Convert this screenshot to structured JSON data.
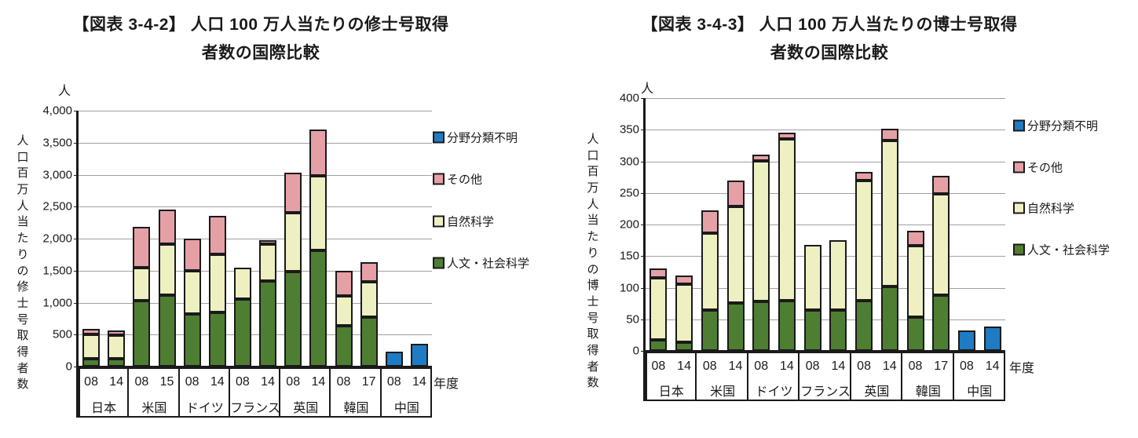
{
  "page": {
    "background": "#ffffff"
  },
  "colors": {
    "humanities_social": "#4e7e32",
    "natural_science": "#eef0c2",
    "other": "#e5a0a6",
    "unknown_field": "#1e7bc4",
    "gridline": "#a0a0a0",
    "axis": "#1a1a1a"
  },
  "chart_data": [
    {
      "type": "bar",
      "stacked": true,
      "title_lines": [
        "【図表 3-4-2】 人口 100 万人当たりの修士号取得",
        "者数の国際比較"
      ],
      "unit_label": "人",
      "y_axis_title": "人口百万人当たりの修士号取得者数",
      "x_axis_right_label": "年度",
      "ylim": [
        0,
        4000
      ],
      "y_tick_step": 500,
      "y_tick_labels": [
        "0",
        "500",
        "1,000",
        "1,500",
        "2,000",
        "2,500",
        "3,000",
        "3,500",
        "4,000"
      ],
      "grid": true,
      "legend_position": "right",
      "legend": [
        {
          "label": "分野分類不明",
          "color": "#1e7bc4"
        },
        {
          "label": "その他",
          "color": "#e5a0a6"
        },
        {
          "label": "自然科学",
          "color": "#eef0c2"
        },
        {
          "label": "人文・社会科学",
          "color": "#4e7e32"
        }
      ],
      "groups": [
        {
          "country": "日本",
          "years": [
            "08",
            "14"
          ]
        },
        {
          "country": "米国",
          "years": [
            "08",
            "15"
          ]
        },
        {
          "country": "ドイツ",
          "years": [
            "08",
            "14"
          ]
        },
        {
          "country": "フランス",
          "years": [
            "08",
            "14"
          ]
        },
        {
          "country": "英国",
          "years": [
            "08",
            "14"
          ]
        },
        {
          "country": "韓国",
          "years": [
            "08",
            "17"
          ]
        },
        {
          "country": "中国",
          "years": [
            "08",
            "14"
          ]
        }
      ],
      "series": [
        {
          "name": "人文・社会科学",
          "color": "#4e7e32",
          "values": [
            125,
            120,
            1030,
            1120,
            820,
            845,
            1055,
            1340,
            1480,
            1815,
            635,
            770,
            0,
            0
          ]
        },
        {
          "name": "自然科学",
          "color": "#eef0c2",
          "values": [
            375,
            365,
            520,
            790,
            675,
            915,
            490,
            580,
            925,
            1165,
            470,
            560,
            0,
            0
          ]
        },
        {
          "name": "その他",
          "color": "#e5a0a6",
          "values": [
            85,
            75,
            630,
            540,
            505,
            600,
            0,
            50,
            620,
            720,
            390,
            305,
            0,
            0
          ]
        },
        {
          "name": "分野分類不明",
          "color": "#1e7bc4",
          "values": [
            0,
            0,
            0,
            0,
            0,
            0,
            0,
            0,
            0,
            0,
            0,
            0,
            230,
            350
          ]
        }
      ]
    },
    {
      "type": "bar",
      "stacked": true,
      "title_lines": [
        "【図表 3-4-3】 人口 100 万人当たりの博士号取得",
        "者数の国際比較"
      ],
      "unit_label": "人",
      "y_axis_title": "人口百万人当たりの博士号取得者数",
      "x_axis_right_label": "年度",
      "ylim": [
        0,
        400
      ],
      "y_tick_step": 50,
      "y_tick_labels": [
        "0",
        "50",
        "100",
        "150",
        "200",
        "250",
        "300",
        "350",
        "400"
      ],
      "grid": true,
      "legend_position": "right",
      "legend": [
        {
          "label": "分野分類不明",
          "color": "#1e7bc4"
        },
        {
          "label": "その他",
          "color": "#e5a0a6"
        },
        {
          "label": "自然科学",
          "color": "#eef0c2"
        },
        {
          "label": "人文・社会科学",
          "color": "#4e7e32"
        }
      ],
      "groups": [
        {
          "country": "日本",
          "years": [
            "08",
            "14"
          ]
        },
        {
          "country": "米国",
          "years": [
            "08",
            "14"
          ]
        },
        {
          "country": "ドイツ",
          "years": [
            "08",
            "14"
          ]
        },
        {
          "country": "フランス",
          "years": [
            "08",
            "14"
          ]
        },
        {
          "country": "英国",
          "years": [
            "08",
            "14"
          ]
        },
        {
          "country": "韓国",
          "years": [
            "08",
            "17"
          ]
        },
        {
          "country": "中国",
          "years": [
            "08",
            "14"
          ]
        }
      ],
      "series": [
        {
          "name": "人文・社会科学",
          "color": "#4e7e32",
          "values": [
            17,
            14,
            65,
            76,
            78,
            79,
            64,
            64,
            80,
            102,
            53,
            88,
            0,
            0
          ]
        },
        {
          "name": "自然科学",
          "color": "#eef0c2",
          "values": [
            99,
            91,
            121,
            153,
            223,
            256,
            104,
            111,
            190,
            231,
            113,
            160,
            0,
            0
          ]
        },
        {
          "name": "その他",
          "color": "#e5a0a6",
          "values": [
            14,
            14,
            36,
            41,
            9,
            10,
            0,
            0,
            13,
            18,
            24,
            29,
            0,
            0
          ]
        },
        {
          "name": "分野分類不明",
          "color": "#1e7bc4",
          "values": [
            0,
            0,
            0,
            0,
            0,
            0,
            0,
            0,
            0,
            0,
            0,
            0,
            32,
            39
          ]
        }
      ]
    }
  ]
}
